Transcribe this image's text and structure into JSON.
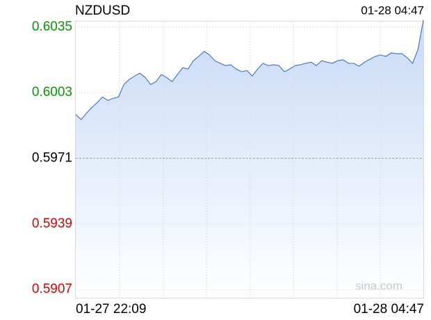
{
  "chart_data": {
    "type": "area",
    "title": "NZDUSD",
    "timestamp": "01-28 04:47",
    "watermark": "sina.com",
    "categories": [
      "01-27 22:09",
      null,
      null,
      null,
      null,
      null,
      null,
      null,
      null,
      null,
      null,
      null,
      null,
      null,
      null,
      null,
      null,
      null,
      null,
      null,
      null,
      null,
      null,
      null,
      null,
      null,
      null,
      null,
      null,
      null,
      null,
      null,
      null,
      null,
      null,
      null,
      null,
      null,
      null,
      null,
      null,
      null,
      null,
      null,
      null,
      null,
      null,
      null,
      null,
      null,
      null,
      null,
      null,
      null,
      null,
      null,
      null,
      null,
      null,
      null,
      null,
      null,
      null,
      null,
      null,
      "01-28 04:47"
    ],
    "series": [
      {
        "name": "NZDUSD",
        "color": "#3a6fc4",
        "values": [
          0.59923,
          0.59899,
          0.5993,
          0.59958,
          0.59981,
          0.60009,
          0.59992,
          0.60002,
          0.60009,
          0.6007,
          0.60094,
          0.60111,
          0.60125,
          0.60104,
          0.6007,
          0.60084,
          0.60118,
          0.60104,
          0.60084,
          0.60118,
          0.60152,
          0.60145,
          0.60186,
          0.60207,
          0.60231,
          0.60214,
          0.60186,
          0.60173,
          0.60162,
          0.60166,
          0.60145,
          0.60132,
          0.60138,
          0.60111,
          0.60145,
          0.60173,
          0.60162,
          0.60166,
          0.60162,
          0.60132,
          0.60145,
          0.60162,
          0.60166,
          0.60173,
          0.60179,
          0.60162,
          0.60186,
          0.60179,
          0.60173,
          0.60186,
          0.6019,
          0.60173,
          0.60173,
          0.60159,
          0.60179,
          0.60193,
          0.60207,
          0.60214,
          0.60207,
          0.60224,
          0.6022,
          0.6022,
          0.602,
          0.60173,
          0.60241,
          0.60384
        ]
      }
    ],
    "ylim": [
      0.5903,
      0.6038
    ],
    "yticks": [
      {
        "value": 0.6035,
        "label": "0.6035"
      },
      {
        "value": 0.6003,
        "label": "0.6003"
      },
      {
        "value": 0.5971,
        "label": "0.5971"
      },
      {
        "value": 0.5939,
        "label": "0.5939"
      },
      {
        "value": 0.5907,
        "label": "0.5907"
      }
    ],
    "prev_close": 0.5971,
    "up_color": "#009900",
    "down_color": "#dd0000",
    "grid": true
  }
}
